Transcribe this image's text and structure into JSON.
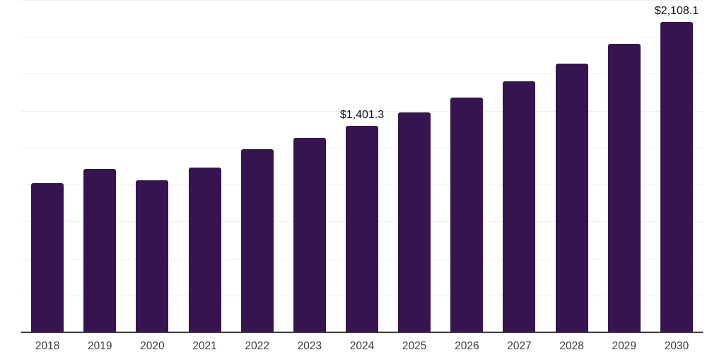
{
  "chart_data": {
    "type": "bar",
    "title": "",
    "xlabel": "",
    "ylabel": "",
    "categories": [
      "2018",
      "2019",
      "2020",
      "2021",
      "2022",
      "2023",
      "2024",
      "2025",
      "2026",
      "2027",
      "2028",
      "2029",
      "2030"
    ],
    "values": [
      1013.7,
      1109.3,
      1032.8,
      1118.9,
      1243.2,
      1319.7,
      1401.3,
      1491.8,
      1592.2,
      1702.2,
      1826.5,
      1960.4,
      2108.1
    ],
    "data_labels": {
      "2024": "$1,401.3",
      "2030": "$2,108.1"
    },
    "value_prefix": "$",
    "ylim": [
      0,
      2250
    ],
    "gridline_step": 250,
    "grid": "horizontal",
    "legend": "none",
    "y_axis_labels_visible": false,
    "colors": {
      "bar": "#361450",
      "axis": "#3c3c3c",
      "gridline": "#f0f0f0",
      "tick_label": "#3d3d3d",
      "data_label": "#111111",
      "background": "#ffffff"
    }
  }
}
